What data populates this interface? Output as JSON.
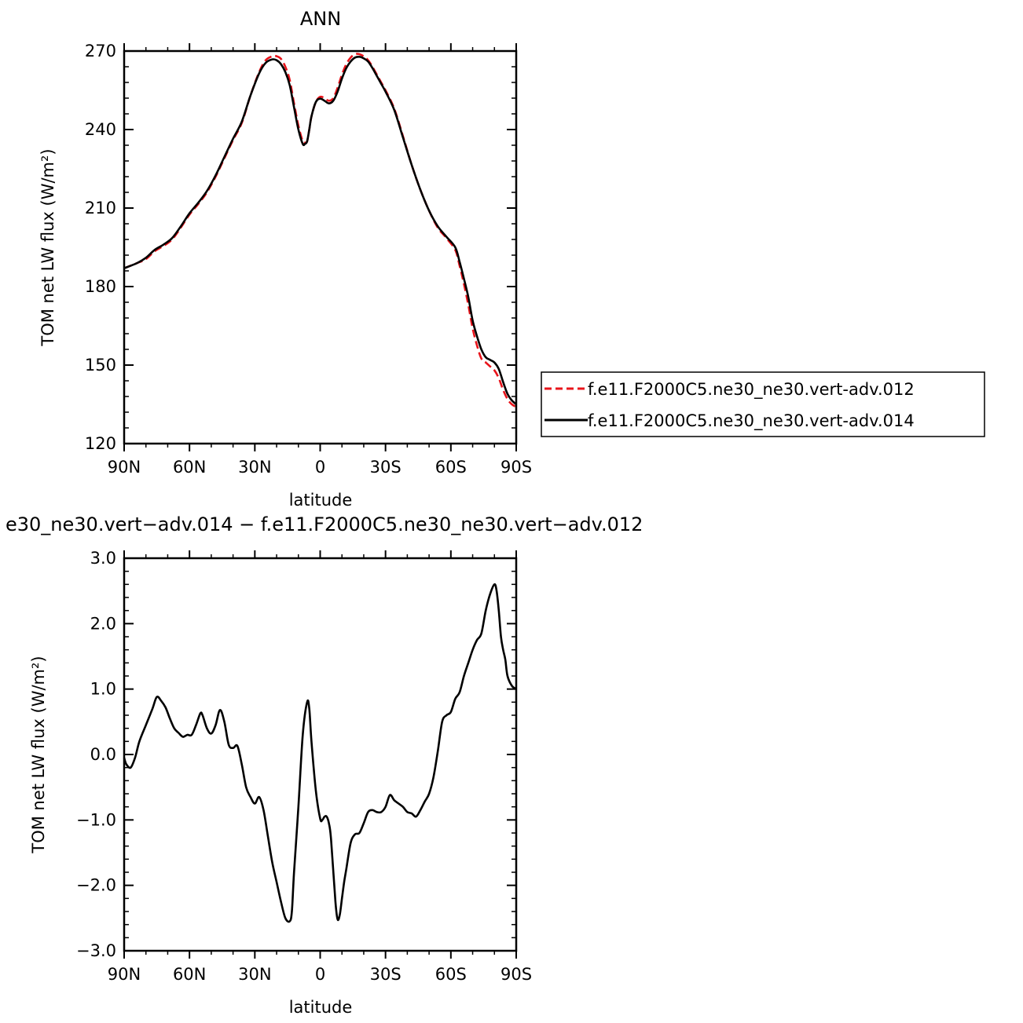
{
  "chart_data": [
    {
      "type": "line",
      "title": "ANN",
      "xlabel": "latitude",
      "ylabel": "TOM net LW flux (W/m²)",
      "xlim": [
        -90,
        90
      ],
      "ylim": [
        120,
        270
      ],
      "x_direction": "north-to-south",
      "x_ticks": [
        {
          "v": -90,
          "label": "90N"
        },
        {
          "v": -60,
          "label": "60N"
        },
        {
          "v": -30,
          "label": "30N"
        },
        {
          "v": 0,
          "label": "0"
        },
        {
          "v": 30,
          "label": "30S"
        },
        {
          "v": 60,
          "label": "60S"
        },
        {
          "v": 90,
          "label": "90S"
        }
      ],
      "y_ticks": [
        {
          "v": 120,
          "label": "120"
        },
        {
          "v": 150,
          "label": "150"
        },
        {
          "v": 180,
          "label": "180"
        },
        {
          "v": 210,
          "label": "210"
        },
        {
          "v": 240,
          "label": "240"
        },
        {
          "v": 270,
          "label": "270"
        }
      ],
      "legend": "right",
      "series": [
        {
          "name": "f.e11.F2000C5.ne30_ne30.vert-adv.012",
          "color": "#e8141b",
          "style": "dashed",
          "x": [
            -90,
            -84,
            -80,
            -76,
            -72,
            -68,
            -64,
            -60,
            -56,
            -52,
            -48,
            -44,
            -40,
            -36,
            -32,
            -28,
            -25,
            -22,
            -20,
            -18,
            -16,
            -14,
            -12,
            -10,
            -8,
            -7,
            -6,
            -5,
            -4,
            -2,
            0,
            2,
            4,
            6,
            8,
            10,
            12,
            14,
            16,
            18,
            20,
            22,
            24,
            26,
            28,
            30,
            34,
            38,
            42,
            46,
            50,
            54,
            58,
            62,
            64,
            66,
            68,
            70,
            72,
            74,
            76,
            78,
            80,
            82,
            84,
            86,
            88,
            90
          ],
          "values": [
            187,
            189,
            190.5,
            193.5,
            195.5,
            198,
            202.5,
            207.5,
            211.5,
            216,
            222,
            229,
            236,
            242.5,
            253,
            262,
            266.5,
            268,
            268,
            267,
            264,
            259,
            250,
            241.5,
            235.5,
            235,
            235.5,
            240,
            245,
            250.5,
            252.5,
            252,
            251,
            252,
            256,
            261,
            265,
            267.5,
            268.8,
            268.8,
            268,
            266.5,
            264,
            261,
            258,
            255,
            248,
            237.5,
            226.5,
            217,
            209,
            202.5,
            198.5,
            194,
            188,
            181,
            173,
            164,
            157.5,
            152.5,
            151,
            149.5,
            148,
            145,
            140.5,
            137,
            135,
            134
          ]
        },
        {
          "name": "f.e11.F2000C5.ne30_ne30.vert-adv.014",
          "color": "#000000",
          "style": "solid",
          "x": [
            -90,
            -84,
            -80,
            -76,
            -72,
            -68,
            -64,
            -60,
            -56,
            -52,
            -48,
            -44,
            -40,
            -36,
            -32,
            -28,
            -25,
            -22,
            -20,
            -18,
            -16,
            -14,
            -12,
            -10,
            -8,
            -7,
            -6,
            -5,
            -4,
            -2,
            0,
            2,
            4,
            6,
            8,
            10,
            12,
            14,
            16,
            18,
            20,
            22,
            24,
            26,
            28,
            30,
            34,
            38,
            42,
            46,
            50,
            54,
            58,
            62,
            64,
            66,
            68,
            70,
            72,
            74,
            76,
            78,
            80,
            82,
            84,
            86,
            88,
            90
          ],
          "values": [
            187,
            189,
            191,
            194,
            196,
            198.5,
            203,
            208,
            212,
            216.5,
            222.5,
            229.5,
            236.5,
            243,
            253,
            261.5,
            265.5,
            266.8,
            266.5,
            265,
            262,
            257,
            248.5,
            240,
            234.5,
            234.5,
            235.5,
            240,
            245,
            250.5,
            251.8,
            251,
            250,
            251,
            254.5,
            259.5,
            263.5,
            266,
            267.5,
            267.8,
            267.2,
            266,
            263.5,
            260.5,
            257.5,
            254.5,
            247.5,
            237,
            226.5,
            217,
            209,
            203,
            199,
            195,
            189.5,
            183,
            176,
            167,
            161,
            156,
            153,
            152,
            151,
            148.5,
            143.5,
            139,
            136.5,
            135
          ]
        }
      ]
    },
    {
      "type": "line",
      "title": "e30_ne30.vert−adv.014 − f.e11.F2000C5.ne30_ne30.vert−adv.012",
      "xlabel": "latitude",
      "ylabel": "TOM net LW flux (W/m²)",
      "xlim": [
        -90,
        90
      ],
      "ylim": [
        -3.0,
        3.0
      ],
      "x_direction": "north-to-south",
      "x_ticks": [
        {
          "v": -90,
          "label": "90N"
        },
        {
          "v": -60,
          "label": "60N"
        },
        {
          "v": -30,
          "label": "30N"
        },
        {
          "v": 0,
          "label": "0"
        },
        {
          "v": 30,
          "label": "30S"
        },
        {
          "v": 60,
          "label": "60S"
        },
        {
          "v": 90,
          "label": "90S"
        }
      ],
      "y_ticks": [
        {
          "v": -3.0,
          "label": "−3.0"
        },
        {
          "v": -2.0,
          "label": "−2.0"
        },
        {
          "v": -1.0,
          "label": "−1.0"
        },
        {
          "v": 0.0,
          "label": "0.0"
        },
        {
          "v": 1.0,
          "label": "1.0"
        },
        {
          "v": 2.0,
          "label": "2.0"
        },
        {
          "v": 3.0,
          "label": "3.0"
        }
      ],
      "series": [
        {
          "color": "#000000",
          "style": "solid",
          "x": [
            -90,
            -89,
            -87,
            -85,
            -83,
            -80,
            -77,
            -75,
            -73,
            -71,
            -69,
            -67,
            -65,
            -63,
            -61,
            -59,
            -57,
            -55,
            -54,
            -52,
            -50,
            -48,
            -46,
            -44,
            -42,
            -40,
            -38,
            -36,
            -34,
            -32,
            -30,
            -28,
            -26,
            -24,
            -22,
            -20,
            -18,
            -16,
            -14,
            -13,
            -12,
            -10,
            -8,
            -6,
            -5,
            -4,
            -2,
            0,
            1,
            2,
            3,
            4,
            5,
            7,
            8,
            9,
            10,
            11,
            12,
            14,
            16,
            18,
            20,
            22,
            24,
            26,
            28,
            30,
            32,
            34,
            36,
            38,
            40,
            42,
            44,
            46,
            48,
            50,
            52,
            54,
            56,
            58,
            60,
            62,
            64,
            66,
            68,
            70,
            72,
            74,
            76,
            78,
            80,
            81,
            82,
            83,
            84,
            85,
            86,
            88,
            90
          ],
          "values": [
            -0.05,
            -0.15,
            -0.2,
            -0.05,
            0.2,
            0.45,
            0.7,
            0.88,
            0.82,
            0.72,
            0.55,
            0.4,
            0.33,
            0.27,
            0.3,
            0.3,
            0.45,
            0.63,
            0.6,
            0.4,
            0.32,
            0.45,
            0.68,
            0.5,
            0.15,
            0.1,
            0.13,
            -0.15,
            -0.5,
            -0.65,
            -0.75,
            -0.65,
            -0.85,
            -1.25,
            -1.65,
            -1.95,
            -2.25,
            -2.5,
            -2.55,
            -2.4,
            -1.8,
            -0.8,
            0.3,
            0.8,
            0.7,
            0.2,
            -0.55,
            -0.98,
            -1.0,
            -0.95,
            -0.95,
            -1.05,
            -1.3,
            -2.25,
            -2.52,
            -2.45,
            -2.2,
            -1.95,
            -1.75,
            -1.35,
            -1.22,
            -1.2,
            -1.05,
            -0.88,
            -0.85,
            -0.88,
            -0.88,
            -0.8,
            -0.62,
            -0.7,
            -0.75,
            -0.8,
            -0.88,
            -0.9,
            -0.95,
            -0.85,
            -0.72,
            -0.6,
            -0.35,
            0.05,
            0.5,
            0.6,
            0.65,
            0.85,
            0.95,
            1.2,
            1.4,
            1.6,
            1.75,
            1.85,
            2.2,
            2.45,
            2.6,
            2.5,
            2.2,
            1.8,
            1.6,
            1.45,
            1.2,
            1.05,
            1.0
          ]
        }
      ]
    }
  ]
}
